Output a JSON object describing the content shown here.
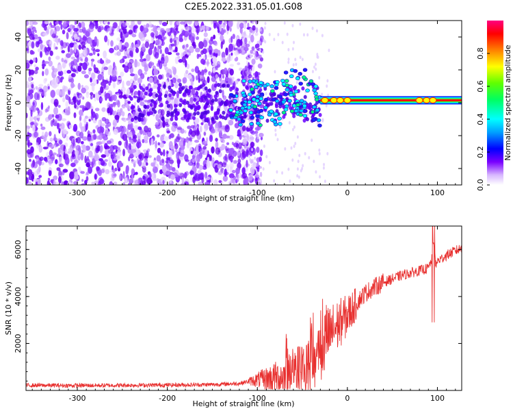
{
  "page": {
    "title": "C2E5.2022.331.05.01.G08"
  },
  "chart_data": [
    {
      "type": "heatmap",
      "xlabel": "Height of straight line (km)",
      "ylabel": "Frequency (Hz)",
      "xlim": [
        -357,
        127
      ],
      "ylim": [
        -50,
        50
      ],
      "xticks": [
        -300,
        -200,
        -100,
        0,
        100
      ],
      "yticks": [
        -40,
        -20,
        0,
        20,
        40
      ],
      "colorbar": {
        "label": "Normalized spectral amplitude",
        "range": [
          0,
          1
        ],
        "ticks": [
          0.0,
          0.2,
          0.4,
          0.6,
          0.8
        ],
        "colormap": [
          "#ffffff",
          "#6a00ff",
          "#0000ff",
          "#00ffff",
          "#00ff00",
          "#ffff00",
          "#ff8000",
          "#ff0000",
          "#ff0080"
        ]
      },
      "features": {
        "noise_region_x": [
          -357,
          -100
        ],
        "transition_region_x": [
          -130,
          -30
        ],
        "signal_line_x": [
          -30,
          127
        ],
        "signal_line_frequency": 1.5
      }
    },
    {
      "type": "line",
      "xlabel": "Height of straight line (km)",
      "ylabel": "SNR (10 * v/v)",
      "xlim": [
        -357,
        127
      ],
      "ylim": [
        0,
        7000
      ],
      "xticks": [
        -300,
        -200,
        -100,
        0,
        100
      ],
      "yticks": [
        2000,
        4000,
        6000
      ],
      "series": [
        {
          "color": "#e8302f",
          "x": [
            -357,
            -300,
            -250,
            -200,
            -150,
            -120,
            -110,
            -100,
            -90,
            -80,
            -70,
            -60,
            -50,
            -45,
            -40,
            -35,
            -30,
            -25,
            -20,
            -15,
            -10,
            -5,
            0,
            5,
            10,
            15,
            20,
            30,
            40,
            50,
            60,
            70,
            80,
            90,
            94,
            96,
            98,
            100,
            110,
            120,
            127
          ],
          "y": [
            220,
            210,
            220,
            230,
            250,
            300,
            380,
            450,
            500,
            550,
            600,
            700,
            850,
            1000,
            1250,
            1500,
            1800,
            2100,
            2350,
            2600,
            2800,
            3000,
            3200,
            3450,
            3700,
            3950,
            4150,
            4400,
            4600,
            4750,
            4900,
            5000,
            5100,
            5200,
            5600,
            6400,
            5300,
            5500,
            5750,
            5950,
            6050
          ]
        }
      ]
    }
  ]
}
